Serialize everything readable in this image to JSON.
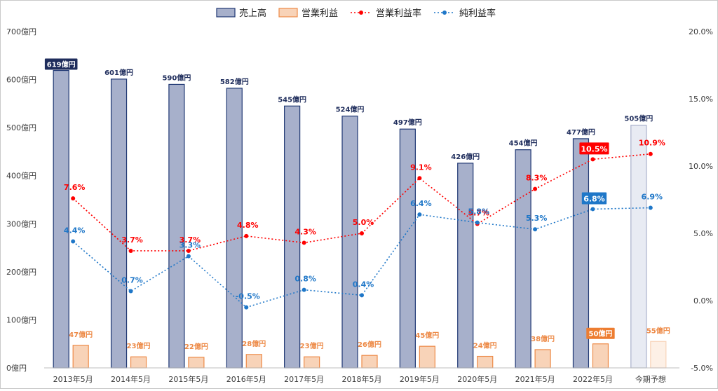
{
  "chart_data": {
    "type": "bar",
    "categories": [
      "2013年5月",
      "2014年5月",
      "2015年5月",
      "2016年5月",
      "2017年5月",
      "2018年5月",
      "2019年5月",
      "2020年5月",
      "2021年5月",
      "2022年5月",
      "今期予想"
    ],
    "legend": [
      "売上高",
      "営業利益",
      "営業利益率",
      "純利益率"
    ],
    "legend_position": "top",
    "series": [
      {
        "name": "売上高",
        "kind": "bar",
        "axis": "left",
        "values": [
          619,
          601,
          590,
          582,
          545,
          524,
          497,
          426,
          454,
          477,
          505
        ],
        "labels": [
          "619億円",
          "601億円",
          "590億円",
          "582億円",
          "545億円",
          "524億円",
          "497億円",
          "426億円",
          "454億円",
          "477億円",
          "505億円"
        ]
      },
      {
        "name": "営業利益",
        "kind": "bar",
        "axis": "left",
        "values": [
          47,
          23,
          22,
          28,
          23,
          26,
          45,
          24,
          38,
          50,
          55
        ],
        "labels": [
          "47億円",
          "23億円",
          "22億円",
          "28億円",
          "23億円",
          "26億円",
          "45億円",
          "24億円",
          "38億円",
          "50億円",
          "55億円"
        ]
      },
      {
        "name": "営業利益率",
        "kind": "line",
        "axis": "right",
        "values": [
          7.6,
          3.7,
          3.7,
          4.8,
          4.3,
          5.0,
          9.1,
          5.7,
          8.3,
          10.5,
          10.9
        ],
        "labels": [
          "7.6%",
          "3.7%",
          "3.7%",
          "4.8%",
          "4.3%",
          "5.0%",
          "9.1%",
          "5.7%",
          "8.3%",
          "10.5%",
          "10.9%"
        ]
      },
      {
        "name": "純利益率",
        "kind": "line",
        "axis": "right",
        "values": [
          4.4,
          0.7,
          3.3,
          -0.5,
          0.8,
          0.4,
          6.4,
          5.8,
          5.3,
          6.8,
          6.9
        ],
        "labels": [
          "4.4%",
          "0.7%",
          "3.3%",
          "-0.5%",
          "0.8%",
          "0.4%",
          "6.4%",
          "5.8%",
          "5.3%",
          "6.8%",
          "6.9%"
        ]
      }
    ],
    "y_left": {
      "min": 0,
      "max": 700,
      "ticks": [
        "0億円",
        "100億円",
        "200億円",
        "300億円",
        "400億円",
        "500億円",
        "600億円",
        "700億円"
      ]
    },
    "y_right": {
      "min": -5.0,
      "max": 20.0,
      "ticks": [
        "-5.0%",
        "0.0%",
        "5.0%",
        "10.0%",
        "15.0%",
        "20.0%"
      ]
    },
    "grid": false,
    "highlight_labels": {
      "sales_index": 0,
      "op_profit_index": 9,
      "op_margin_index": 9,
      "net_margin_index": 9
    },
    "forecast_index": 10,
    "colors": {
      "sales_fill": "#a7b0cb",
      "sales_stroke": "#1f3773",
      "sales_label": "#1f2d5c",
      "sales_highlight_bg": "#1f2d5c",
      "forecast_fill": "#e8ebf3",
      "forecast_stroke": "#a7b0cb",
      "op_profit_fill": "#f8d3b8",
      "op_profit_stroke": "#ed8a47",
      "op_profit_label": "#ed8a47",
      "op_profit_highlight_bg": "#ed7d31",
      "forecast_op_fill": "#fdf0e6",
      "forecast_op_stroke": "#f8d3b8",
      "op_margin": "#ff0000",
      "net_margin": "#1f77c8",
      "axis_text": "#3a3a3a"
    }
  }
}
